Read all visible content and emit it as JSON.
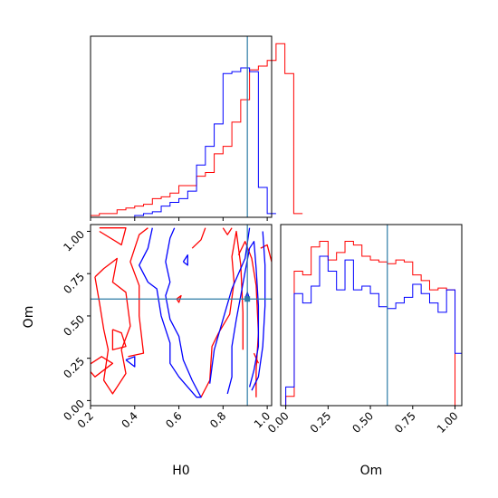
{
  "chart_data": {
    "type": "corner",
    "colors": {
      "series_a": "#ff0000",
      "series_b": "#0000ff",
      "truth": "#2e7ca6"
    },
    "truth": {
      "H0": 0.91,
      "Om": 0.6
    },
    "parameters": [
      {
        "name": "H0",
        "xlim": [
          0.2,
          1.02
        ],
        "ticks": [
          0.2,
          0.4,
          0.6,
          0.8,
          1.0
        ],
        "tick_labels": [
          "0.2",
          "0.4",
          "0.6",
          "0.8",
          "1.0"
        ]
      },
      {
        "name": "Om",
        "xlim": [
          -0.03,
          1.04
        ],
        "ticks": [
          0.0,
          0.25,
          0.5,
          0.75,
          1.0
        ],
        "tick_labels": [
          "0.00",
          "0.25",
          "0.50",
          "0.75",
          "1.00"
        ]
      }
    ],
    "hist_H0": {
      "edges_start": 0.2,
      "bin_width": 0.04,
      "series": [
        {
          "color": "red",
          "values": [
            0.01,
            0.02,
            0.02,
            0.04,
            0.05,
            0.06,
            0.07,
            0.1,
            0.11,
            0.13,
            0.17,
            0.17,
            0.22,
            0.24,
            0.34,
            0.38,
            0.51,
            0.63,
            0.79,
            0.81,
            0.84,
            0.93,
            0.77,
            0.02
          ]
        },
        {
          "color": "blue",
          "values": [
            0.0,
            0.0,
            0.0,
            0.0,
            0.0,
            0.01,
            0.02,
            0.03,
            0.06,
            0.08,
            0.1,
            0.14,
            0.28,
            0.38,
            0.5,
            0.77,
            0.78,
            0.8,
            0.78,
            0.16,
            0.02
          ]
        }
      ]
    },
    "hist_Om": {
      "edges_start": 0.0,
      "bin_width": 0.05,
      "series": [
        {
          "color": "red",
          "values": [
            0.05,
            0.72,
            0.7,
            0.85,
            0.88,
            0.78,
            0.82,
            0.88,
            0.86,
            0.8,
            0.78,
            0.77,
            0.76,
            0.78,
            0.77,
            0.7,
            0.67,
            0.62,
            0.63,
            0.62
          ],
          "line_x": [
            0.0,
            0.0,
            1.0,
            1.0
          ]
        },
        {
          "color": "blue",
          "values": [
            0.1,
            0.6,
            0.55,
            0.64,
            0.8,
            0.72,
            0.62,
            0.78,
            0.62,
            0.64,
            0.6,
            0.53,
            0.52,
            0.55,
            0.58,
            0.65,
            0.6,
            0.55,
            0.5,
            0.62,
            0.28
          ]
        }
      ]
    },
    "contours_2d": {
      "x_param": "H0",
      "y_param": "Om",
      "series": [
        {
          "color": "red",
          "paths": [
            [
              [
                0.22,
                0.73
              ],
              [
                0.26,
                0.78
              ],
              [
                0.32,
                0.84
              ],
              [
                0.3,
                0.7
              ],
              [
                0.36,
                0.64
              ],
              [
                0.38,
                0.44
              ],
              [
                0.34,
                0.3
              ],
              [
                0.36,
                0.16
              ],
              [
                0.3,
                0.04
              ],
              [
                0.26,
                0.12
              ],
              [
                0.28,
                0.3
              ],
              [
                0.26,
                0.42
              ],
              [
                0.24,
                0.58
              ],
              [
                0.22,
                0.73
              ]
            ],
            [
              [
                0.24,
                1.0
              ],
              [
                0.34,
                0.92
              ],
              [
                0.36,
                1.02
              ],
              [
                0.24,
                1.02
              ]
            ],
            [
              [
                0.37,
                0.26
              ],
              [
                0.44,
                0.28
              ],
              [
                0.42,
                0.5
              ],
              [
                0.42,
                0.68
              ],
              [
                0.38,
                0.82
              ],
              [
                0.42,
                0.98
              ],
              [
                0.46,
                1.02
              ]
            ],
            [
              [
                0.18,
                0.2
              ],
              [
                0.25,
                0.26
              ],
              [
                0.3,
                0.22
              ],
              [
                0.22,
                0.14
              ],
              [
                0.18,
                0.2
              ]
            ],
            [
              [
                0.3,
                0.42
              ],
              [
                0.34,
                0.4
              ],
              [
                0.36,
                0.32
              ],
              [
                0.3,
                0.3
              ],
              [
                0.3,
                0.42
              ]
            ],
            [
              [
                0.59,
                0.6
              ],
              [
                0.61,
                0.62
              ],
              [
                0.6,
                0.58
              ],
              [
                0.59,
                0.6
              ]
            ],
            [
              [
                0.78,
                0.4
              ],
              [
                0.83,
                0.51
              ],
              [
                0.85,
                0.7
              ],
              [
                0.84,
                0.85
              ],
              [
                0.86,
                1.0
              ],
              [
                0.88,
                0.8
              ],
              [
                0.89,
                0.52
              ],
              [
                0.89,
                0.3
              ]
            ],
            [
              [
                0.7,
                0.02
              ],
              [
                0.74,
                0.12
              ],
              [
                0.75,
                0.32
              ],
              [
                0.78,
                0.4
              ]
            ],
            [
              [
                0.87,
                0.86
              ],
              [
                0.9,
                0.94
              ],
              [
                0.93,
                0.84
              ],
              [
                0.95,
                0.68
              ],
              [
                0.96,
                0.4
              ],
              [
                0.95,
                0.18
              ],
              [
                0.95,
                0.02
              ]
            ],
            [
              [
                0.66,
                0.9
              ],
              [
                0.7,
                0.95
              ],
              [
                0.72,
                1.02
              ]
            ],
            [
              [
                0.8,
                1.02
              ],
              [
                0.82,
                0.98
              ],
              [
                0.84,
                1.02
              ]
            ],
            [
              [
                0.97,
                0.9
              ],
              [
                1.0,
                0.92
              ],
              [
                1.02,
                0.82
              ]
            ],
            [
              [
                0.94,
                0.28
              ],
              [
                0.96,
                0.22
              ]
            ]
          ]
        },
        {
          "color": "blue",
          "paths": [
            [
              [
                0.48,
                1.02
              ],
              [
                0.46,
                0.9
              ],
              [
                0.42,
                0.8
              ],
              [
                0.46,
                0.7
              ],
              [
                0.5,
                0.66
              ],
              [
                0.52,
                0.5
              ],
              [
                0.56,
                0.34
              ],
              [
                0.56,
                0.22
              ],
              [
                0.6,
                0.14
              ],
              [
                0.64,
                0.08
              ],
              [
                0.68,
                0.02
              ],
              [
                0.7,
                0.02
              ],
              [
                0.66,
                0.12
              ],
              [
                0.62,
                0.24
              ],
              [
                0.6,
                0.38
              ],
              [
                0.56,
                0.48
              ],
              [
                0.54,
                0.62
              ],
              [
                0.56,
                0.7
              ],
              [
                0.54,
                0.82
              ],
              [
                0.56,
                0.96
              ],
              [
                0.58,
                1.02
              ]
            ],
            [
              [
                0.62,
                0.82
              ],
              [
                0.64,
                0.8
              ],
              [
                0.64,
                0.86
              ],
              [
                0.62,
                0.82
              ]
            ],
            [
              [
                0.82,
                0.04
              ],
              [
                0.84,
                0.14
              ],
              [
                0.84,
                0.32
              ],
              [
                0.86,
                0.48
              ],
              [
                0.88,
                0.62
              ],
              [
                0.9,
                0.76
              ],
              [
                0.92,
                0.9
              ],
              [
                0.94,
                0.94
              ],
              [
                0.95,
                0.78
              ],
              [
                0.96,
                0.56
              ],
              [
                0.96,
                0.32
              ],
              [
                0.94,
                0.18
              ],
              [
                0.92,
                0.08
              ]
            ],
            [
              [
                0.74,
                0.1
              ],
              [
                0.76,
                0.3
              ],
              [
                0.8,
                0.48
              ],
              [
                0.84,
                0.66
              ],
              [
                0.9,
                0.84
              ],
              [
                0.92,
                1.02
              ]
            ],
            [
              [
                0.93,
                0.06
              ],
              [
                0.96,
                0.14
              ],
              [
                0.98,
                0.32
              ],
              [
                0.99,
                0.56
              ],
              [
                0.99,
                0.8
              ],
              [
                0.98,
                1.0
              ]
            ],
            [
              [
                0.36,
                0.24
              ],
              [
                0.4,
                0.2
              ],
              [
                0.4,
                0.26
              ],
              [
                0.36,
                0.24
              ]
            ],
            [
              [
                0.9,
                0.6
              ],
              [
                0.91,
                0.64
              ],
              [
                0.92,
                0.6
              ],
              [
                0.9,
                0.6
              ]
            ]
          ]
        }
      ]
    }
  }
}
